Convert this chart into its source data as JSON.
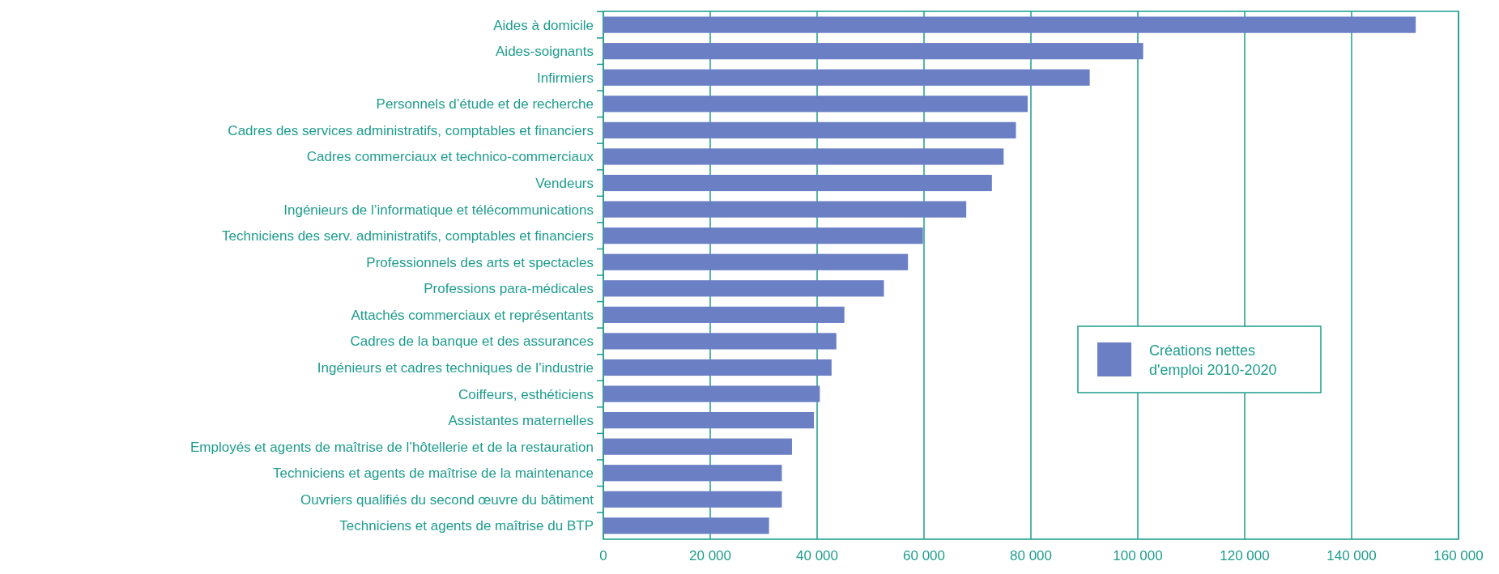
{
  "chart_data": {
    "type": "bar",
    "orientation": "horizontal",
    "categories": [
      "Aides à domicile",
      "Aides-soignants",
      "Infirmiers",
      "Personnels d’étude et de recherche",
      "Cadres des services administratifs, comptables et financiers",
      "Cadres commerciaux et technico-commerciaux",
      "Vendeurs",
      "Ingénieurs de l’informatique et télécommunications",
      "Techniciens des serv. administratifs, comptables et financiers",
      "Professionnels des arts et spectacles",
      "Professions para-médicales",
      "Attachés commerciaux et représentants",
      "Cadres de la banque et des assurances",
      "Ingénieurs et cadres techniques de l’industrie",
      "Coiffeurs, esthéticiens",
      "Assistantes maternelles",
      "Employés et agents de maîtrise de l’hôtellerie et de la restauration",
      "Techniciens et agents de maîtrise de la maintenance",
      "Ouvriers qualifiés du second œuvre du bâtiment",
      "Techniciens et agents de maîtrise du BTP"
    ],
    "series": [
      {
        "name": "Créations nettes d'emploi 2010-2020",
        "color": "#6b7fc4",
        "values": [
          152000,
          101000,
          91000,
          79400,
          77200,
          74900,
          72700,
          67900,
          59800,
          57000,
          52500,
          45100,
          43600,
          42700,
          40500,
          39400,
          35300,
          33400,
          33400,
          31000
        ]
      }
    ],
    "xlim": [
      0,
      160000
    ],
    "xticks": [
      0,
      {
        "value": 20000,
        "label": "20 000"
      },
      {
        "value": 40000,
        "label": "40 000"
      },
      {
        "value": 60000,
        "label": "60 000"
      },
      {
        "value": 80000,
        "label": "80 000"
      },
      {
        "value": 100000,
        "label": "100 000"
      },
      {
        "value": 120000,
        "label": "120 000"
      },
      {
        "value": 140000,
        "label": "140 000"
      },
      {
        "value": 160000,
        "label": "160 000"
      }
    ],
    "grid": "x",
    "legend": "right"
  }
}
